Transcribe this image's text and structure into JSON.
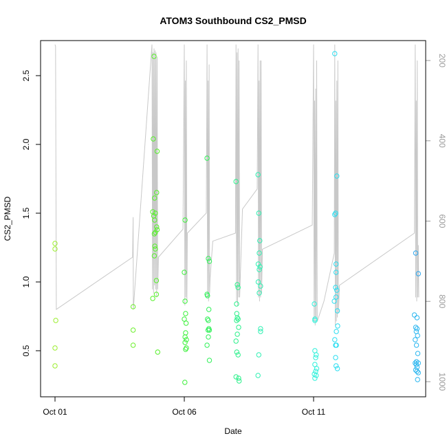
{
  "chart_data": {
    "type": "scatter",
    "title": "ATOM3 Southbound CS2_PMSD",
    "xlabel": "Date",
    "ylabel": "CS2_PMSD",
    "x_domain_days": [
      0,
      14
    ],
    "xticks": [
      {
        "day": 0,
        "label": "Oct 01"
      },
      {
        "day": 5,
        "label": "Oct 06"
      },
      {
        "day": 10,
        "label": "Oct 11"
      }
    ],
    "ylim": [
      0.25,
      2.75
    ],
    "yticks": [
      "0.5",
      "1.0",
      "1.5",
      "2.0",
      "2.5"
    ],
    "y2_axis": {
      "reversed": true,
      "range": [
        1020,
        160
      ],
      "ticks": [
        "200",
        "400",
        "600",
        "800",
        "1000"
      ],
      "color": "#9a9a9a"
    },
    "grid": false,
    "legend": "none",
    "points": [
      {
        "x": 0.0,
        "y": 1.28,
        "color": "#9BEE2E"
      },
      {
        "x": 0.0,
        "y": 1.24,
        "color": "#9BEE2E"
      },
      {
        "x": 0.03,
        "y": 0.72,
        "color": "#9BEE2E"
      },
      {
        "x": 0.0,
        "y": 0.52,
        "color": "#9BEE2E"
      },
      {
        "x": 0.0,
        "y": 0.39,
        "color": "#9BEE2E"
      },
      {
        "x": 3.02,
        "y": 0.82,
        "color": "#6CF02C"
      },
      {
        "x": 3.02,
        "y": 0.65,
        "color": "#6CF02C"
      },
      {
        "x": 3.02,
        "y": 0.54,
        "color": "#6CF02C"
      },
      {
        "x": 3.83,
        "y": 2.64,
        "color": "#55F028"
      },
      {
        "x": 3.8,
        "y": 2.04,
        "color": "#55F028"
      },
      {
        "x": 3.95,
        "y": 1.95,
        "color": "#55F028"
      },
      {
        "x": 3.93,
        "y": 1.65,
        "color": "#55F028"
      },
      {
        "x": 3.85,
        "y": 1.61,
        "color": "#55F028"
      },
      {
        "x": 3.78,
        "y": 1.51,
        "color": "#55F028"
      },
      {
        "x": 3.88,
        "y": 1.5,
        "color": "#55F028"
      },
      {
        "x": 3.82,
        "y": 1.48,
        "color": "#55F028"
      },
      {
        "x": 3.85,
        "y": 1.45,
        "color": "#55F028"
      },
      {
        "x": 3.93,
        "y": 1.4,
        "color": "#55F028"
      },
      {
        "x": 3.95,
        "y": 1.38,
        "color": "#55F028"
      },
      {
        "x": 3.88,
        "y": 1.36,
        "color": "#55F028"
      },
      {
        "x": 3.84,
        "y": 1.35,
        "color": "#55F028"
      },
      {
        "x": 3.86,
        "y": 1.26,
        "color": "#55F028"
      },
      {
        "x": 3.88,
        "y": 1.24,
        "color": "#55F028"
      },
      {
        "x": 3.84,
        "y": 1.19,
        "color": "#55F028"
      },
      {
        "x": 3.92,
        "y": 1.01,
        "color": "#55F028"
      },
      {
        "x": 3.92,
        "y": 0.91,
        "color": "#55F028"
      },
      {
        "x": 3.78,
        "y": 0.88,
        "color": "#55F028"
      },
      {
        "x": 3.97,
        "y": 0.49,
        "color": "#55F028"
      },
      {
        "x": 5.03,
        "y": 1.45,
        "color": "#3BF03A"
      },
      {
        "x": 5.0,
        "y": 1.07,
        "color": "#3BF03A"
      },
      {
        "x": 5.03,
        "y": 0.86,
        "color": "#3BF03A"
      },
      {
        "x": 5.05,
        "y": 0.77,
        "color": "#3BF03A"
      },
      {
        "x": 5.0,
        "y": 0.73,
        "color": "#3BF03A"
      },
      {
        "x": 5.07,
        "y": 0.7,
        "color": "#3BF03A"
      },
      {
        "x": 5.05,
        "y": 0.63,
        "color": "#3BF03A"
      },
      {
        "x": 5.03,
        "y": 0.6,
        "color": "#3BF03A"
      },
      {
        "x": 5.08,
        "y": 0.58,
        "color": "#3BF03A"
      },
      {
        "x": 5.03,
        "y": 0.56,
        "color": "#3BF03A"
      },
      {
        "x": 5.08,
        "y": 0.52,
        "color": "#3BF03A"
      },
      {
        "x": 5.05,
        "y": 0.51,
        "color": "#3BF03A"
      },
      {
        "x": 5.02,
        "y": 0.27,
        "color": "#3BF03A"
      },
      {
        "x": 5.88,
        "y": 1.9,
        "color": "#30F058"
      },
      {
        "x": 5.93,
        "y": 1.17,
        "color": "#30F058"
      },
      {
        "x": 5.97,
        "y": 1.15,
        "color": "#30F058"
      },
      {
        "x": 5.88,
        "y": 0.91,
        "color": "#30F058"
      },
      {
        "x": 5.9,
        "y": 0.9,
        "color": "#30F058"
      },
      {
        "x": 5.95,
        "y": 0.8,
        "color": "#30F058"
      },
      {
        "x": 5.9,
        "y": 0.73,
        "color": "#30F058"
      },
      {
        "x": 5.93,
        "y": 0.72,
        "color": "#30F058"
      },
      {
        "x": 5.95,
        "y": 0.66,
        "color": "#30F058"
      },
      {
        "x": 5.97,
        "y": 0.65,
        "color": "#30F058"
      },
      {
        "x": 5.92,
        "y": 0.65,
        "color": "#30F058"
      },
      {
        "x": 5.93,
        "y": 0.6,
        "color": "#30F058"
      },
      {
        "x": 5.88,
        "y": 0.54,
        "color": "#30F058"
      },
      {
        "x": 5.97,
        "y": 0.43,
        "color": "#30F058"
      },
      {
        "x": 7.0,
        "y": 1.73,
        "color": "#2AF08A"
      },
      {
        "x": 7.05,
        "y": 0.98,
        "color": "#2AF08A"
      },
      {
        "x": 7.08,
        "y": 0.96,
        "color": "#2AF08A"
      },
      {
        "x": 7.02,
        "y": 0.84,
        "color": "#2AF08A"
      },
      {
        "x": 7.03,
        "y": 0.77,
        "color": "#2AF08A"
      },
      {
        "x": 7.05,
        "y": 0.74,
        "color": "#2AF08A"
      },
      {
        "x": 7.08,
        "y": 0.73,
        "color": "#2AF08A"
      },
      {
        "x": 7.02,
        "y": 0.72,
        "color": "#2AF08A"
      },
      {
        "x": 7.1,
        "y": 0.67,
        "color": "#2AF08A"
      },
      {
        "x": 7.05,
        "y": 0.62,
        "color": "#2AF08A"
      },
      {
        "x": 7.0,
        "y": 0.57,
        "color": "#2AF08A"
      },
      {
        "x": 7.03,
        "y": 0.49,
        "color": "#2AF08A"
      },
      {
        "x": 7.08,
        "y": 0.47,
        "color": "#2AF08A"
      },
      {
        "x": 7.0,
        "y": 0.31,
        "color": "#2AF08A"
      },
      {
        "x": 7.1,
        "y": 0.3,
        "color": "#2AF08A"
      },
      {
        "x": 7.12,
        "y": 0.28,
        "color": "#2AF08A"
      },
      {
        "x": 7.85,
        "y": 1.78,
        "color": "#2EF0B2"
      },
      {
        "x": 7.88,
        "y": 1.5,
        "color": "#2EF0B2"
      },
      {
        "x": 7.92,
        "y": 1.3,
        "color": "#2EF0B2"
      },
      {
        "x": 7.9,
        "y": 1.21,
        "color": "#2EF0B2"
      },
      {
        "x": 7.86,
        "y": 1.13,
        "color": "#2EF0B2"
      },
      {
        "x": 7.93,
        "y": 1.11,
        "color": "#2EF0B2"
      },
      {
        "x": 7.9,
        "y": 1.09,
        "color": "#2EF0B2"
      },
      {
        "x": 7.86,
        "y": 1.0,
        "color": "#2EF0B2"
      },
      {
        "x": 7.95,
        "y": 0.97,
        "color": "#2EF0B2"
      },
      {
        "x": 7.9,
        "y": 0.92,
        "color": "#2EF0B2"
      },
      {
        "x": 7.95,
        "y": 0.66,
        "color": "#2EF0B2"
      },
      {
        "x": 7.95,
        "y": 0.64,
        "color": "#2EF0B2"
      },
      {
        "x": 7.88,
        "y": 0.47,
        "color": "#2EF0B2"
      },
      {
        "x": 7.85,
        "y": 0.32,
        "color": "#2EF0B2"
      },
      {
        "x": 10.03,
        "y": 0.84,
        "color": "#2CF0DA"
      },
      {
        "x": 10.05,
        "y": 0.73,
        "color": "#2CF0DA"
      },
      {
        "x": 10.05,
        "y": 0.72,
        "color": "#2CF0DA"
      },
      {
        "x": 10.05,
        "y": 0.5,
        "color": "#2CF0DA"
      },
      {
        "x": 10.1,
        "y": 0.47,
        "color": "#2CF0DA"
      },
      {
        "x": 10.08,
        "y": 0.45,
        "color": "#2CF0DA"
      },
      {
        "x": 10.05,
        "y": 0.4,
        "color": "#2CF0DA"
      },
      {
        "x": 10.12,
        "y": 0.37,
        "color": "#2CF0DA"
      },
      {
        "x": 10.08,
        "y": 0.35,
        "color": "#2CF0DA"
      },
      {
        "x": 10.03,
        "y": 0.33,
        "color": "#2CF0DA"
      },
      {
        "x": 10.1,
        "y": 0.32,
        "color": "#2CF0DA"
      },
      {
        "x": 10.05,
        "y": 0.3,
        "color": "#2CF0DA"
      },
      {
        "x": 10.82,
        "y": 2.66,
        "color": "#2ADDF0"
      },
      {
        "x": 10.9,
        "y": 1.77,
        "color": "#2ADDF0"
      },
      {
        "x": 10.85,
        "y": 1.5,
        "color": "#2ADDF0"
      },
      {
        "x": 10.82,
        "y": 1.49,
        "color": "#2ADDF0"
      },
      {
        "x": 10.87,
        "y": 1.13,
        "color": "#2ADDF0"
      },
      {
        "x": 10.87,
        "y": 1.07,
        "color": "#2ADDF0"
      },
      {
        "x": 10.85,
        "y": 0.96,
        "color": "#2ADDF0"
      },
      {
        "x": 10.9,
        "y": 0.94,
        "color": "#2ADDF0"
      },
      {
        "x": 10.87,
        "y": 0.89,
        "color": "#2ADDF0"
      },
      {
        "x": 10.8,
        "y": 0.86,
        "color": "#2ADDF0"
      },
      {
        "x": 10.92,
        "y": 0.79,
        "color": "#2ADDF0"
      },
      {
        "x": 10.93,
        "y": 0.68,
        "color": "#2ADDF0"
      },
      {
        "x": 10.88,
        "y": 0.64,
        "color": "#2ADDF0"
      },
      {
        "x": 10.82,
        "y": 0.58,
        "color": "#2ADDF0"
      },
      {
        "x": 10.85,
        "y": 0.54,
        "color": "#2ADDF0"
      },
      {
        "x": 10.88,
        "y": 0.54,
        "color": "#2ADDF0"
      },
      {
        "x": 10.85,
        "y": 0.45,
        "color": "#2ADDF0"
      },
      {
        "x": 10.87,
        "y": 0.39,
        "color": "#2ADDF0"
      },
      {
        "x": 10.92,
        "y": 0.37,
        "color": "#2ADDF0"
      },
      {
        "x": 13.95,
        "y": 1.21,
        "color": "#2AA6F0"
      },
      {
        "x": 14.05,
        "y": 1.06,
        "color": "#2AA6F0"
      },
      {
        "x": 13.9,
        "y": 0.76,
        "color": "#2AB6F0"
      },
      {
        "x": 14.0,
        "y": 0.74,
        "color": "#2AB6F0"
      },
      {
        "x": 13.95,
        "y": 0.67,
        "color": "#2AB6F0"
      },
      {
        "x": 14.0,
        "y": 0.66,
        "color": "#2AB6F0"
      },
      {
        "x": 13.97,
        "y": 0.64,
        "color": "#2AB6F0"
      },
      {
        "x": 14.02,
        "y": 0.61,
        "color": "#2AB6F0"
      },
      {
        "x": 13.93,
        "y": 0.58,
        "color": "#2AB6F0"
      },
      {
        "x": 13.98,
        "y": 0.54,
        "color": "#2AB6F0"
      },
      {
        "x": 14.03,
        "y": 0.48,
        "color": "#2AB6F0"
      },
      {
        "x": 13.98,
        "y": 0.42,
        "color": "#2AB6F0"
      },
      {
        "x": 13.93,
        "y": 0.41,
        "color": "#2AB6F0"
      },
      {
        "x": 14.05,
        "y": 0.41,
        "color": "#2AB6F0"
      },
      {
        "x": 13.97,
        "y": 0.4,
        "color": "#2AB6F0"
      },
      {
        "x": 14.0,
        "y": 0.38,
        "color": "#2AB6F0"
      },
      {
        "x": 13.95,
        "y": 0.36,
        "color": "#2AB6F0"
      },
      {
        "x": 14.0,
        "y": 0.35,
        "color": "#2AB6F0"
      },
      {
        "x": 14.05,
        "y": 0.34,
        "color": "#2AB6F0"
      },
      {
        "x": 14.02,
        "y": 0.29,
        "color": "#2AB6F0"
      }
    ],
    "depth_trace": {
      "color": "#c8c8c8",
      "points": [
        [
          0.0,
          160
        ],
        [
          0.02,
          165
        ],
        [
          0.05,
          820
        ],
        [
          3.0,
          690
        ],
        [
          3.02,
          590
        ],
        [
          3.03,
          820
        ],
        [
          3.75,
          160
        ],
        [
          3.77,
          770
        ],
        [
          3.79,
          180
        ],
        [
          3.81,
          780
        ],
        [
          3.83,
          170
        ],
        [
          3.85,
          760
        ],
        [
          3.87,
          175
        ],
        [
          3.89,
          770
        ],
        [
          3.91,
          180
        ],
        [
          3.93,
          790
        ],
        [
          3.95,
          190
        ],
        [
          3.97,
          770
        ],
        [
          4.0,
          690
        ],
        [
          4.95,
          620
        ],
        [
          5.0,
          160
        ],
        [
          5.02,
          810
        ],
        [
          5.04,
          250
        ],
        [
          5.06,
          790
        ],
        [
          5.08,
          200
        ],
        [
          5.1,
          800
        ],
        [
          5.12,
          630
        ],
        [
          5.85,
          580
        ],
        [
          5.88,
          160
        ],
        [
          5.9,
          790
        ],
        [
          5.92,
          250
        ],
        [
          5.94,
          800
        ],
        [
          5.96,
          210
        ],
        [
          5.98,
          780
        ],
        [
          6.0,
          740
        ],
        [
          6.1,
          650
        ],
        [
          6.98,
          630
        ],
        [
          7.0,
          160
        ],
        [
          7.02,
          800
        ],
        [
          7.04,
          180
        ],
        [
          7.06,
          810
        ],
        [
          7.08,
          170
        ],
        [
          7.1,
          790
        ],
        [
          7.12,
          200
        ],
        [
          7.14,
          790
        ],
        [
          7.25,
          570
        ],
        [
          7.82,
          520
        ],
        [
          7.85,
          160
        ],
        [
          7.87,
          790
        ],
        [
          7.89,
          250
        ],
        [
          7.91,
          800
        ],
        [
          7.93,
          200
        ],
        [
          7.95,
          790
        ],
        [
          7.97,
          200
        ],
        [
          7.99,
          780
        ],
        [
          8.02,
          670
        ],
        [
          9.95,
          610
        ],
        [
          10.0,
          160
        ],
        [
          10.02,
          850
        ],
        [
          10.04,
          300
        ],
        [
          10.06,
          860
        ],
        [
          10.08,
          270
        ],
        [
          10.1,
          840
        ],
        [
          10.12,
          200
        ],
        [
          10.14,
          850
        ],
        [
          10.4,
          800
        ],
        [
          10.8,
          680
        ],
        [
          10.82,
          160
        ],
        [
          10.84,
          860
        ],
        [
          10.86,
          300
        ],
        [
          10.88,
          850
        ],
        [
          10.9,
          250
        ],
        [
          10.92,
          840
        ],
        [
          10.94,
          200
        ],
        [
          10.96,
          830
        ],
        [
          11.0,
          760
        ],
        [
          13.9,
          630
        ],
        [
          13.93,
          160
        ],
        [
          13.95,
          790
        ],
        [
          13.97,
          300
        ],
        [
          13.99,
          800
        ],
        [
          14.01,
          200
        ],
        [
          14.03,
          790
        ],
        [
          14.05,
          660
        ],
        [
          14.07,
          790
        ]
      ]
    }
  }
}
